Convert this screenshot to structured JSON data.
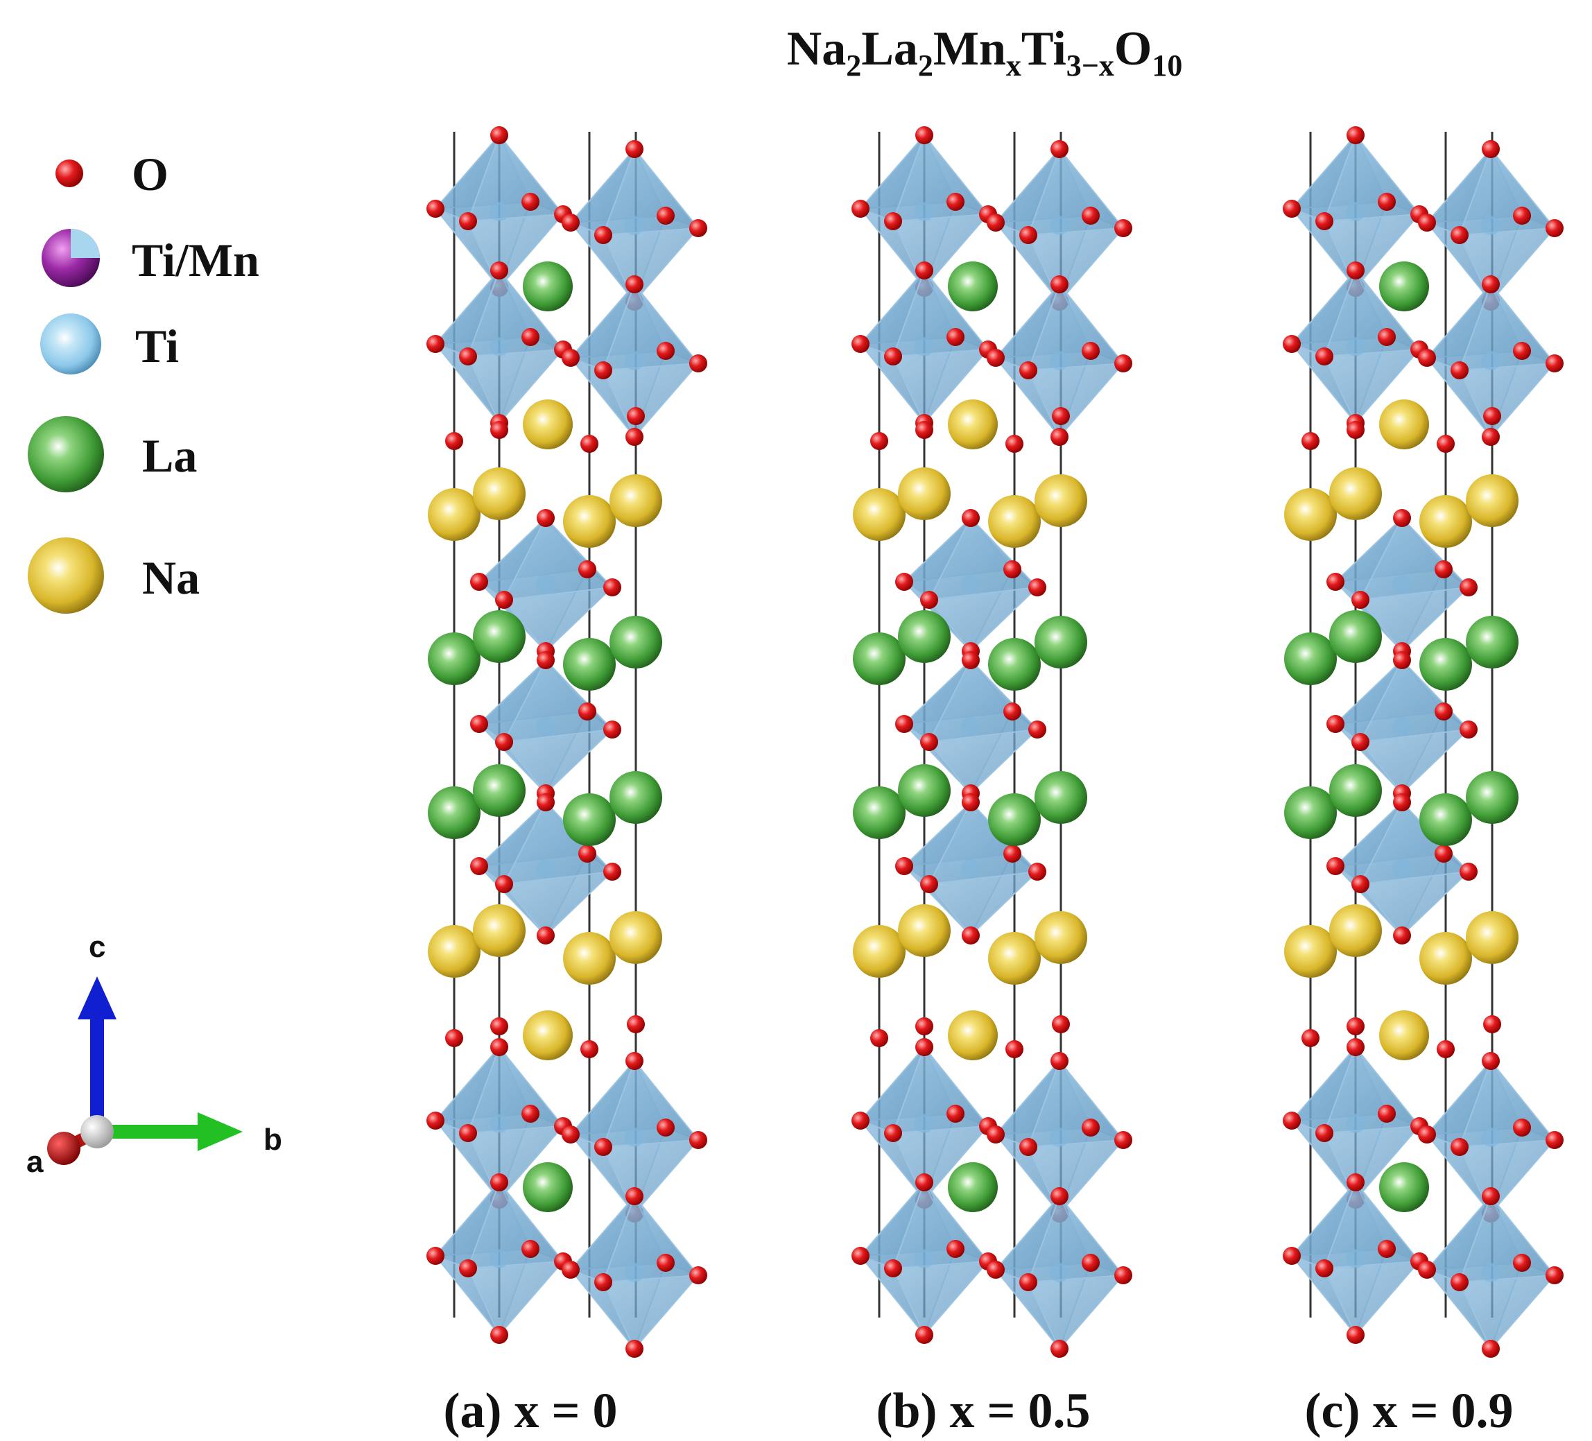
{
  "title": {
    "parts": [
      "Na",
      "2",
      "La",
      "2",
      "Mn",
      "x",
      "Ti",
      "3−x",
      "O",
      "10"
    ]
  },
  "legend": [
    {
      "label": "O",
      "color": "#e31a1c",
      "icon": "oxygen-atom-icon"
    },
    {
      "label": "Ti/Mn",
      "color": "#9b2aa6",
      "secondary_color": "#9fd1ec",
      "icon": "ti-mn-atom-icon"
    },
    {
      "label": "Ti",
      "color": "#8cc8ea",
      "icon": "titanium-atom-icon"
    },
    {
      "label": "La",
      "color": "#3f9c35",
      "icon": "lanthanum-atom-icon"
    },
    {
      "label": "Na",
      "color": "#d9b62a",
      "icon": "sodium-atom-icon"
    }
  ],
  "panels": [
    {
      "id": "a",
      "caption": "(a) x = 0"
    },
    {
      "id": "b",
      "caption": "(b) x = 0.5"
    },
    {
      "id": "c",
      "caption": "(c) x = 0.9"
    }
  ],
  "axes": {
    "c": "c",
    "b": "b",
    "a": "a"
  },
  "colors": {
    "octahedron_fill": "#6fa8cf",
    "octahedron_edge": "#9fc6e2",
    "oxygen": "#e31a1c",
    "lanthanum": "#3f9c35",
    "sodium": "#d9b62a",
    "cell_edge": "#333333",
    "axis_c": "#1020d0",
    "axis_b": "#22c022",
    "axis_a": "#b01010"
  }
}
